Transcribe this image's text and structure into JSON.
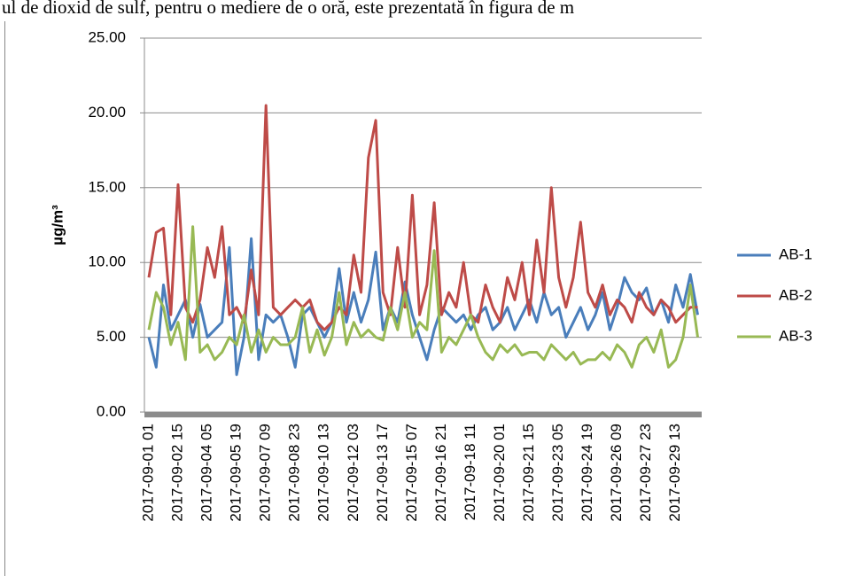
{
  "caption": "ul de dioxid de sulf, pentru o mediere de o oră, este prezentată în figura de m",
  "chart_data": {
    "type": "line",
    "y_label": "µg/m³",
    "categories": [
      "2017-09-01 01",
      null,
      null,
      null,
      "2017-09-02 15",
      null,
      null,
      null,
      "2017-09-04 05",
      null,
      null,
      null,
      "2017-09-05 19",
      null,
      null,
      null,
      "2017-09-07 09",
      null,
      null,
      null,
      "2017-09-08 23",
      null,
      null,
      null,
      "2017-09-10 13",
      null,
      null,
      null,
      "2017-09-12 03",
      null,
      null,
      null,
      "2017-09-13 17",
      null,
      null,
      null,
      "2017-09-15 07",
      null,
      null,
      null,
      "2017-09-16 21",
      null,
      null,
      null,
      "2017-09-18 11",
      null,
      null,
      null,
      "2017-09-20 01",
      null,
      null,
      null,
      "2017-09-21 15",
      null,
      null,
      null,
      "2017-09-23 05",
      null,
      null,
      null,
      "2017-09-24 19",
      null,
      null,
      null,
      "2017-09-26 09",
      null,
      null,
      null,
      "2017-09-27 23",
      null,
      null,
      null,
      "2017-09-29 13",
      null,
      null,
      null
    ],
    "series": [
      {
        "name": "AB-1",
        "color": "#4a7ebb",
        "values": [
          5,
          3,
          8.5,
          5.5,
          6.5,
          7.5,
          5,
          7.2,
          5,
          5.5,
          6,
          11,
          2.5,
          5,
          11.6,
          3.5,
          6.5,
          6,
          6.5,
          5,
          3,
          6.5,
          7,
          6,
          5,
          6,
          9.6,
          6,
          8,
          6,
          7.5,
          10.7,
          5.5,
          7,
          6,
          8.7,
          6.5,
          5,
          3.5,
          5.5,
          7,
          6.5,
          6,
          6.5,
          5.5,
          6.5,
          7,
          5.5,
          6,
          7,
          5.5,
          6.5,
          7.5,
          6,
          8,
          6.5,
          7,
          5,
          6,
          7,
          5.5,
          6.5,
          8,
          5.5,
          7,
          9,
          8,
          7.5,
          8.3,
          6.5,
          7.5,
          6,
          8.5,
          7,
          9.2,
          6.5
        ]
      },
      {
        "name": "AB-2",
        "color": "#be4b48",
        "values": [
          9,
          12,
          12.3,
          6.5,
          15.2,
          7,
          6,
          7.5,
          11,
          9,
          12.4,
          6.5,
          7,
          6,
          9.5,
          6.5,
          20.5,
          7,
          6.5,
          7,
          7.5,
          7,
          7.5,
          6,
          5.5,
          6,
          7,
          6.5,
          10.5,
          8,
          17,
          19.5,
          8,
          6.5,
          11,
          7,
          14.5,
          6.5,
          8.5,
          14,
          6.5,
          8,
          7,
          10,
          6.5,
          6,
          8.5,
          7,
          6,
          9,
          7.5,
          10,
          6.5,
          11.5,
          8,
          15,
          9,
          7,
          9,
          12.7,
          8,
          7,
          8.5,
          6.5,
          7.5,
          7,
          6,
          8,
          7,
          6.5,
          7.5,
          7,
          6,
          6.5,
          7,
          7
        ]
      },
      {
        "name": "AB-3",
        "color": "#98b954",
        "values": [
          5.5,
          8,
          7,
          4.5,
          6,
          3.5,
          12.4,
          4,
          4.5,
          3.5,
          4,
          5,
          4.5,
          6.5,
          4,
          5.5,
          4,
          5,
          4.5,
          4.5,
          5,
          7,
          4,
          5.5,
          3.8,
          5,
          8,
          4.5,
          6,
          5,
          5.5,
          5,
          4.8,
          7,
          5.5,
          8,
          5,
          6,
          5.5,
          10.8,
          4,
          5,
          4.5,
          5.5,
          6.5,
          5,
          4,
          3.5,
          4.5,
          4,
          4.5,
          3.8,
          4,
          4,
          3.5,
          4.5,
          4,
          3.5,
          4,
          3.2,
          3.5,
          3.5,
          4,
          3.5,
          4.5,
          4,
          3,
          4.5,
          5,
          4,
          5.5,
          3,
          3.5,
          5,
          8.5,
          5
        ]
      }
    ],
    "ylim": [
      0,
      25
    ],
    "yticks": [
      {
        "value": 0,
        "label": "0.00"
      },
      {
        "value": 5,
        "label": "5.00"
      },
      {
        "value": 10,
        "label": "10.00"
      },
      {
        "value": 15,
        "label": "15.00"
      },
      {
        "value": 20,
        "label": "20.00"
      },
      {
        "value": 25,
        "label": "25.00"
      }
    ],
    "grid": true,
    "legend": "right"
  }
}
